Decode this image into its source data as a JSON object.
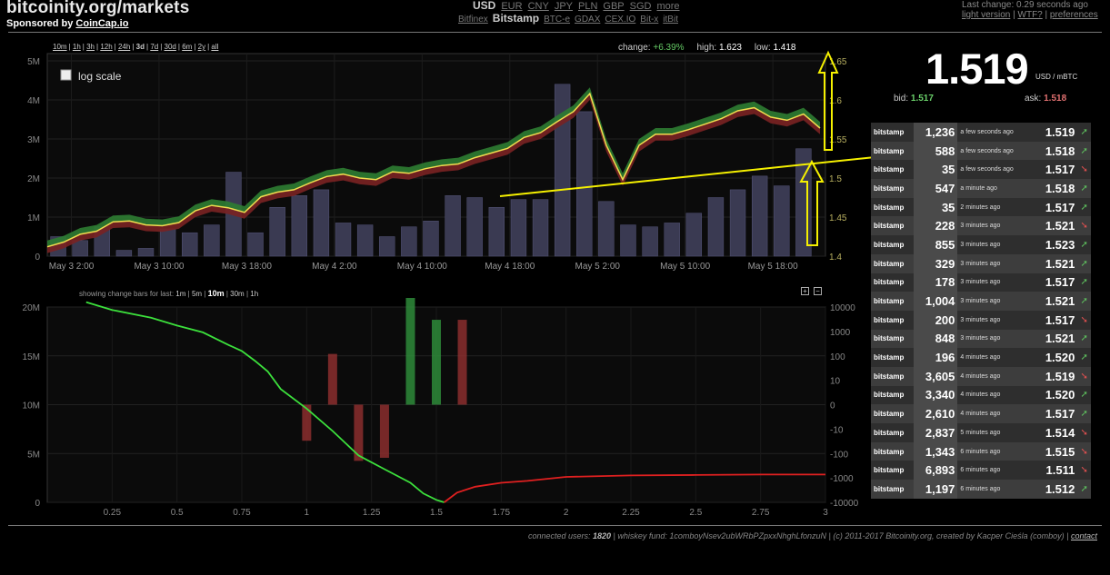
{
  "header": {
    "site_title": "bitcoinity.org/markets",
    "sponsor_prefix": "Sponsored by ",
    "sponsor_link": "CoinCap.io",
    "currencies": [
      {
        "label": "USD",
        "active": true
      },
      {
        "label": "EUR",
        "active": false
      },
      {
        "label": "CNY",
        "active": false
      },
      {
        "label": "JPY",
        "active": false
      },
      {
        "label": "PLN",
        "active": false
      },
      {
        "label": "GBP",
        "active": false
      },
      {
        "label": "SGD",
        "active": false
      },
      {
        "label": "more",
        "active": false
      }
    ],
    "exchanges": [
      {
        "label": "Bitfinex",
        "active": false
      },
      {
        "label": "Bitstamp",
        "active": true
      },
      {
        "label": "BTC-e",
        "active": false
      },
      {
        "label": "GDAX",
        "active": false
      },
      {
        "label": "CEX.IO",
        "active": false
      },
      {
        "label": "Bit-x",
        "active": false
      },
      {
        "label": "itBit",
        "active": false
      }
    ],
    "last_change": "Last change: 0.29 seconds ago",
    "links": [
      "light version",
      "WTF?",
      "preferences"
    ]
  },
  "timeframes": [
    {
      "label": "10m",
      "active": false
    },
    {
      "label": "1h",
      "active": false
    },
    {
      "label": "3h",
      "active": false
    },
    {
      "label": "12h",
      "active": false
    },
    {
      "label": "24h",
      "active": false
    },
    {
      "label": "3d",
      "active": true
    },
    {
      "label": "7d",
      "active": false
    },
    {
      "label": "30d",
      "active": false
    },
    {
      "label": "6m",
      "active": false
    },
    {
      "label": "2y",
      "active": false
    },
    {
      "label": "all",
      "active": false
    }
  ],
  "stats": {
    "change_label": "change:",
    "change_value": "+6.39%",
    "high_label": "high:",
    "high_value": "1.623",
    "low_label": "low:",
    "low_value": "1.418"
  },
  "log_scale_label": "log scale",
  "change_bars": {
    "label": "showing change bars for last:",
    "options": [
      {
        "label": "1m",
        "active": false
      },
      {
        "label": "5m",
        "active": false
      },
      {
        "label": "10m",
        "active": true
      },
      {
        "label": "30m",
        "active": false
      },
      {
        "label": "1h",
        "active": false
      }
    ]
  },
  "price_panel": {
    "price": "1.519",
    "unit": "USD / mBTC",
    "bid_label": "bid:",
    "bid": "1.517",
    "ask_label": "ask:",
    "ask": "1.518"
  },
  "trades": [
    {
      "exchange": "bitstamp",
      "amount": "1,236",
      "ago": "a few seconds ago",
      "price": "1.519",
      "dir": "up"
    },
    {
      "exchange": "bitstamp",
      "amount": "588",
      "ago": "a few seconds ago",
      "price": "1.518",
      "dir": "up"
    },
    {
      "exchange": "bitstamp",
      "amount": "35",
      "ago": "a few seconds ago",
      "price": "1.517",
      "dir": "down"
    },
    {
      "exchange": "bitstamp",
      "amount": "547",
      "ago": "a minute ago",
      "price": "1.518",
      "dir": "up"
    },
    {
      "exchange": "bitstamp",
      "amount": "35",
      "ago": "2 minutes ago",
      "price": "1.517",
      "dir": "up"
    },
    {
      "exchange": "bitstamp",
      "amount": "228",
      "ago": "3 minutes ago",
      "price": "1.521",
      "dir": "down"
    },
    {
      "exchange": "bitstamp",
      "amount": "855",
      "ago": "3 minutes ago",
      "price": "1.523",
      "dir": "up"
    },
    {
      "exchange": "bitstamp",
      "amount": "329",
      "ago": "3 minutes ago",
      "price": "1.521",
      "dir": "up"
    },
    {
      "exchange": "bitstamp",
      "amount": "178",
      "ago": "3 minutes ago",
      "price": "1.517",
      "dir": "up"
    },
    {
      "exchange": "bitstamp",
      "amount": "1,004",
      "ago": "3 minutes ago",
      "price": "1.521",
      "dir": "up"
    },
    {
      "exchange": "bitstamp",
      "amount": "200",
      "ago": "3 minutes ago",
      "price": "1.517",
      "dir": "down"
    },
    {
      "exchange": "bitstamp",
      "amount": "848",
      "ago": "3 minutes ago",
      "price": "1.521",
      "dir": "up"
    },
    {
      "exchange": "bitstamp",
      "amount": "196",
      "ago": "4 minutes ago",
      "price": "1.520",
      "dir": "up"
    },
    {
      "exchange": "bitstamp",
      "amount": "3,605",
      "ago": "4 minutes ago",
      "price": "1.519",
      "dir": "down"
    },
    {
      "exchange": "bitstamp",
      "amount": "3,340",
      "ago": "4 minutes ago",
      "price": "1.520",
      "dir": "up"
    },
    {
      "exchange": "bitstamp",
      "amount": "2,610",
      "ago": "4 minutes ago",
      "price": "1.517",
      "dir": "up"
    },
    {
      "exchange": "bitstamp",
      "amount": "2,837",
      "ago": "5 minutes ago",
      "price": "1.514",
      "dir": "down"
    },
    {
      "exchange": "bitstamp",
      "amount": "1,343",
      "ago": "6 minutes ago",
      "price": "1.515",
      "dir": "down"
    },
    {
      "exchange": "bitstamp",
      "amount": "6,893",
      "ago": "6 minutes ago",
      "price": "1.511",
      "dir": "down"
    },
    {
      "exchange": "bitstamp",
      "amount": "1,197",
      "ago": "6 minutes ago",
      "price": "1.512",
      "dir": "up"
    }
  ],
  "footer": {
    "prefix": "connected users: ",
    "users": "1820",
    "middle": " | whiskey fund: 1comboyNsev2ubWRbPZpxxNhghLfonzuN | (c) 2011-2017 Bitcoinity.org, created by Kacper Cieśla (comboy) | ",
    "contact": "contact"
  },
  "colors": {
    "price_line": "#f0dc50",
    "band_up": "#2e7d32",
    "band_down": "#7a2222",
    "volume_bar": "#3a3a52",
    "bids_line": "#3ce03c",
    "asks_line": "#e02020",
    "annotation": "#f5f000"
  },
  "chart_data": [
    {
      "type": "line",
      "title": "",
      "x_tick_labels": [
        "May 3 2:00",
        "May 3 10:00",
        "May 3 18:00",
        "May 4 2:00",
        "May 4 10:00",
        "May 4 18:00",
        "May 5 2:00",
        "May 5 10:00",
        "May 5 18:00"
      ],
      "y_right_ticks": [
        "1.4",
        "1.45",
        "1.5",
        "1.55",
        "1.6",
        "1.65"
      ],
      "y_left_ticks": [
        "0",
        "1M",
        "2M",
        "3M",
        "4M",
        "5M"
      ],
      "ylim_price": [
        1.4,
        1.65
      ],
      "ylim_volume": [
        0,
        5000000
      ],
      "xlim": [
        0,
        71
      ],
      "series": [
        {
          "x": [
            0,
            1.5,
            3,
            4.5,
            6,
            7.5,
            9,
            10.5,
            12,
            13.5,
            15,
            16.5,
            18,
            19.5,
            21,
            22.5,
            24,
            25.5,
            27,
            28.5,
            30,
            31.5,
            33,
            34.5,
            36,
            37.5,
            39,
            40.5,
            42,
            43.5,
            45,
            46.5,
            48,
            49.5,
            51,
            52.5,
            54,
            55.5,
            57,
            58.5,
            60,
            61.5,
            63,
            64.5,
            66,
            67.5,
            69,
            70.5
          ],
          "values": [
            1.412,
            1.418,
            1.428,
            1.432,
            1.444,
            1.445,
            1.44,
            1.439,
            1.443,
            1.458,
            1.465,
            1.462,
            1.456,
            1.476,
            1.482,
            1.485,
            1.494,
            1.502,
            1.505,
            1.5,
            1.498,
            1.508,
            1.506,
            1.512,
            1.516,
            1.518,
            1.526,
            1.532,
            1.538,
            1.552,
            1.558,
            1.572,
            1.585,
            1.608,
            1.542,
            1.498,
            1.542,
            1.556,
            1.556,
            1.562,
            1.569,
            1.576,
            1.586,
            1.59,
            1.578,
            1.574,
            1.582,
            1.564
          ]
        }
      ],
      "volume_bars": {
        "x": [
          1,
          3,
          5,
          7,
          9,
          11,
          13,
          15,
          17,
          19,
          21,
          23,
          25,
          27,
          29,
          31,
          33,
          35,
          37,
          39,
          41,
          43,
          45,
          47,
          49,
          51,
          53,
          55,
          57,
          59,
          61,
          63,
          65,
          67,
          69
        ],
        "values": [
          500000,
          400000,
          750000,
          150000,
          200000,
          700000,
          600000,
          800000,
          2150000,
          600000,
          1250000,
          1550000,
          1700000,
          850000,
          800000,
          500000,
          750000,
          900000,
          1550000,
          1500000,
          1250000,
          1450000,
          1450000,
          4400000,
          3700000,
          1400000,
          800000,
          750000,
          850000,
          1100000,
          1500000,
          1700000,
          2050000,
          1800000,
          2750000
        ]
      }
    },
    {
      "type": "line",
      "title": "",
      "x": [
        0.25,
        0.5,
        0.75,
        1,
        1.25,
        1.5,
        1.75,
        2,
        2.25,
        2.5,
        2.75,
        3
      ],
      "y_left_ticks": [
        "0",
        "5M",
        "10M",
        "15M",
        "20M"
      ],
      "y_right_ticks": [
        "10000",
        "1000",
        "100",
        "10",
        "0",
        "-10",
        "-100",
        "-1000",
        "-10000"
      ],
      "xlim": [
        0,
        3
      ],
      "ylim": [
        0,
        20000000
      ],
      "series": [
        {
          "name": "",
          "x": [
            0.15,
            0.25,
            0.4,
            0.5,
            0.6,
            0.7,
            0.75,
            0.8,
            0.85,
            0.9,
            1.0,
            1.1,
            1.2,
            1.3,
            1.4,
            1.45,
            1.5,
            1.53
          ],
          "values": [
            20500000,
            19700000,
            18900000,
            18100000,
            17400000,
            16100000,
            15500000,
            14500000,
            13400000,
            11600000,
            9600000,
            7300000,
            4800000,
            3400000,
            2000000,
            900000,
            250000,
            0
          ]
        },
        {
          "name": "",
          "x": [
            1.53,
            1.58,
            1.65,
            1.75,
            1.85,
            2.0,
            2.25,
            2.5,
            2.75,
            3.0
          ],
          "values": [
            0,
            1000000,
            1600000,
            2000000,
            2200000,
            2600000,
            2750000,
            2800000,
            2850000,
            2850000
          ]
        }
      ],
      "change_bars": {
        "x": [
          1.0,
          1.1,
          1.2,
          1.3,
          1.4,
          1.5,
          1.6
        ],
        "values": [
          -3,
          12,
          -20,
          -15,
          3000,
          300,
          300
        ]
      }
    }
  ]
}
